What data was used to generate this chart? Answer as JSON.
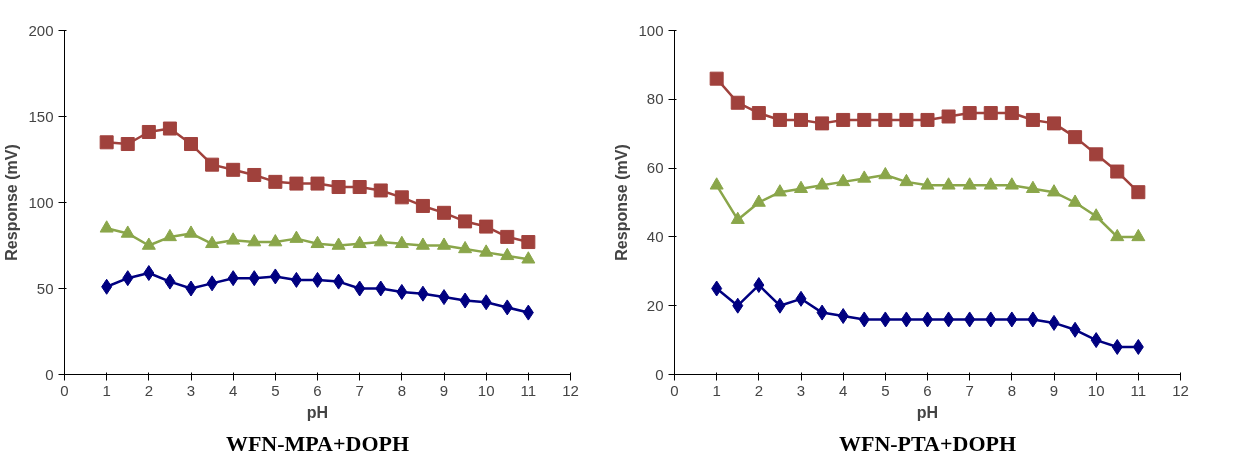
{
  "chart_data": [
    {
      "type": "line",
      "title": "WFN-MPA+DOPH",
      "xlabel": "pH",
      "ylabel": "Response (mV)",
      "x": [
        1,
        1.5,
        2,
        2.5,
        3,
        3.5,
        4,
        4.5,
        5,
        5.5,
        6,
        6.5,
        7,
        7.5,
        8,
        8.5,
        9,
        9.5,
        10,
        10.5,
        11
      ],
      "xlim": [
        0,
        12
      ],
      "xticks": [
        0,
        1,
        2,
        3,
        4,
        5,
        6,
        7,
        8,
        9,
        10,
        11,
        12
      ],
      "ylim": [
        0,
        200
      ],
      "yticks": [
        0,
        50,
        100,
        150,
        200
      ],
      "grid": false,
      "series": [
        {
          "color": "#000080",
          "marker": "diamond",
          "values": [
            51,
            56,
            59,
            54,
            50,
            53,
            56,
            56,
            57,
            55,
            55,
            54,
            50,
            50,
            48,
            47,
            45,
            43,
            42,
            39,
            36
          ]
        },
        {
          "color": "#a0413c",
          "marker": "square",
          "values": [
            135,
            134,
            141,
            143,
            134,
            122,
            119,
            116,
            112,
            111,
            111,
            109,
            109,
            107,
            103,
            98,
            94,
            89,
            86,
            80,
            77
          ]
        },
        {
          "color": "#8aa64a",
          "marker": "triangle",
          "values": [
            85,
            82,
            75,
            80,
            82,
            76,
            78,
            77,
            77,
            79,
            76,
            75,
            76,
            77,
            76,
            75,
            75,
            73,
            71,
            69,
            67
          ]
        }
      ]
    },
    {
      "type": "line",
      "title": "WFN-PTA+DOPH",
      "xlabel": "pH",
      "ylabel": "Response (mV)",
      "x": [
        1,
        1.5,
        2,
        2.5,
        3,
        3.5,
        4,
        4.5,
        5,
        5.5,
        6,
        6.5,
        7,
        7.5,
        8,
        8.5,
        9,
        9.5,
        10,
        10.5,
        11
      ],
      "xlim": [
        0,
        12
      ],
      "xticks": [
        0,
        1,
        2,
        3,
        4,
        5,
        6,
        7,
        8,
        9,
        10,
        11,
        12
      ],
      "ylim": [
        0,
        100
      ],
      "yticks": [
        0,
        20,
        40,
        60,
        80,
        100
      ],
      "grid": false,
      "series": [
        {
          "color": "#000080",
          "marker": "diamond",
          "values": [
            25,
            20,
            26,
            20,
            22,
            18,
            17,
            16,
            16,
            16,
            16,
            16,
            16,
            16,
            16,
            16,
            15,
            13,
            10,
            8,
            8
          ]
        },
        {
          "color": "#a0413c",
          "marker": "square",
          "values": [
            86,
            79,
            76,
            74,
            74,
            73,
            74,
            74,
            74,
            74,
            74,
            75,
            76,
            76,
            76,
            74,
            73,
            69,
            64,
            59,
            53
          ]
        },
        {
          "color": "#8aa64a",
          "marker": "triangle",
          "values": [
            55,
            45,
            50,
            53,
            54,
            55,
            56,
            57,
            58,
            56,
            55,
            55,
            55,
            55,
            55,
            54,
            53,
            50,
            46,
            40,
            40
          ]
        }
      ]
    }
  ]
}
